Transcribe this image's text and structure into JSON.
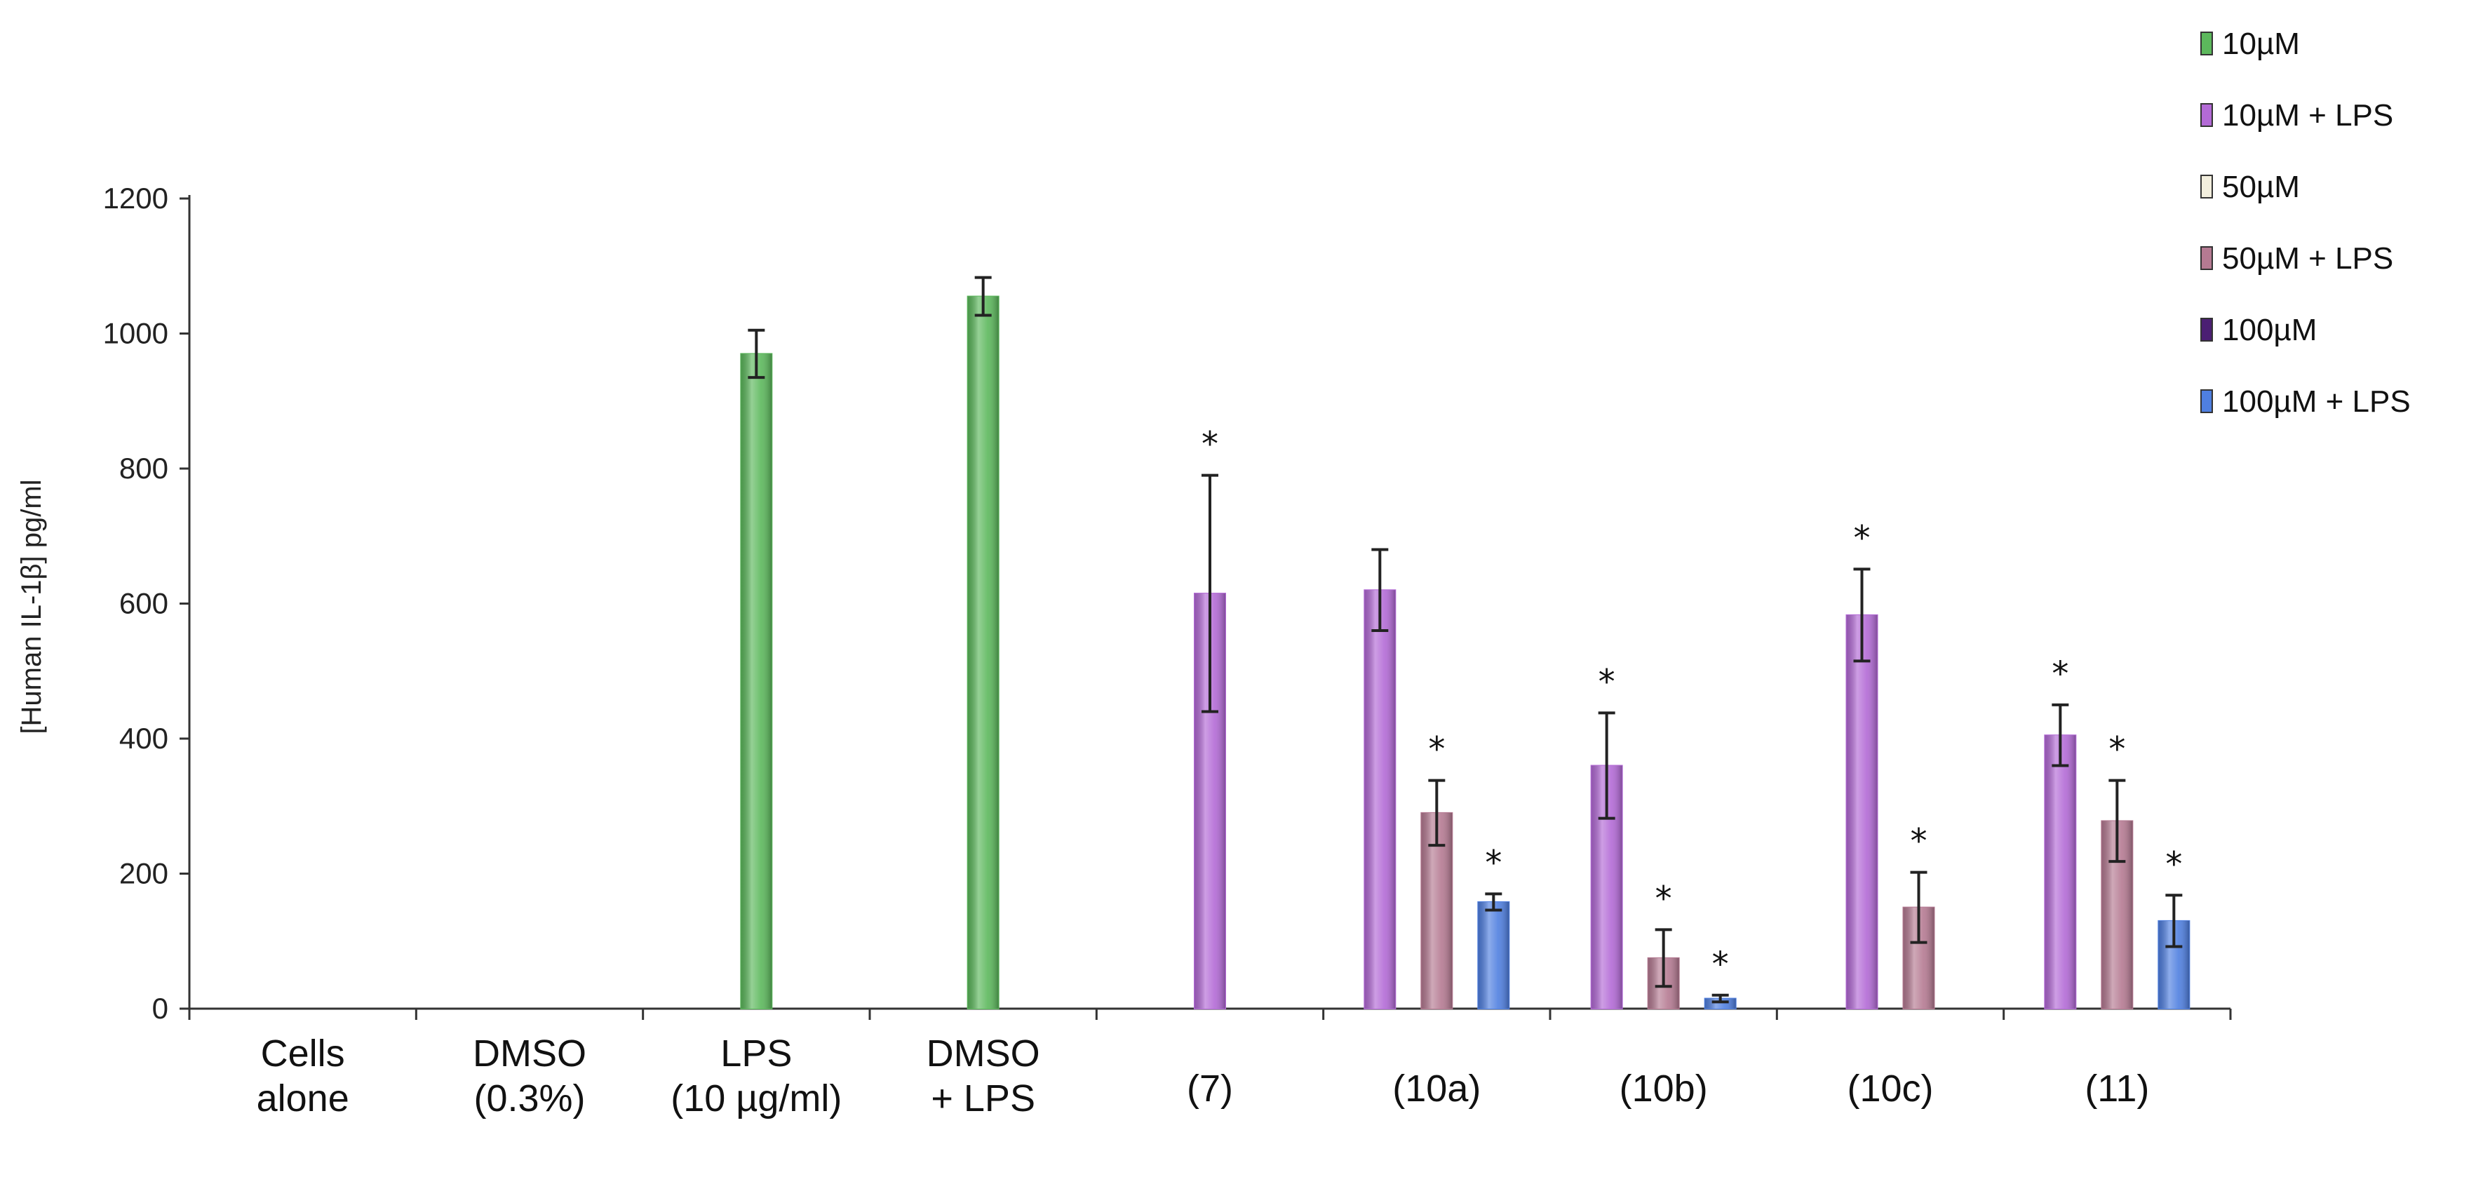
{
  "chart_data": {
    "type": "bar",
    "title": "",
    "xlabel": "",
    "ylabel": "[Human IL-1β] pg/ml",
    "ylim": [
      0,
      1200
    ],
    "yticks": [
      0,
      200,
      400,
      600,
      800,
      1000,
      1200
    ],
    "ytick_labels": [
      "0",
      "200",
      "400",
      "600",
      "800",
      "1000",
      "1200"
    ],
    "categories": [
      {
        "lines": [
          "Cells",
          "alone"
        ]
      },
      {
        "lines": [
          "DMSO",
          "(0.3%)"
        ]
      },
      {
        "lines": [
          "LPS",
          "(10 µg/ml)"
        ]
      },
      {
        "lines": [
          "DMSO",
          "+ LPS"
        ]
      },
      {
        "lines": [
          "(7)"
        ]
      },
      {
        "lines": [
          "(10a)"
        ]
      },
      {
        "lines": [
          "(10b)"
        ]
      },
      {
        "lines": [
          "(10c)"
        ]
      },
      {
        "lines": [
          "(11)"
        ]
      }
    ],
    "series": [
      {
        "name": "10µM",
        "color": "#5cb85c"
      },
      {
        "name": "10µM + LPS",
        "color": "#b36ad6"
      },
      {
        "name": "50µM",
        "color": "#f2eedd"
      },
      {
        "name": "50µM + LPS",
        "color": "#b57a92"
      },
      {
        "name": "100µM",
        "color": "#4b1f73"
      },
      {
        "name": "100µM + LPS",
        "color": "#4f7fe0"
      }
    ],
    "bars": [
      {
        "category": 2,
        "series": 0,
        "value": 970,
        "error": 35,
        "star": false
      },
      {
        "category": 3,
        "series": 0,
        "value": 1055,
        "error": 28,
        "star": false
      },
      {
        "category": 4,
        "series": 1,
        "value": 615,
        "error": 175,
        "star": true
      },
      {
        "category": 5,
        "series": 1,
        "value": 620,
        "error": 60,
        "star": false
      },
      {
        "category": 5,
        "series": 3,
        "value": 290,
        "error": 48,
        "star": true
      },
      {
        "category": 5,
        "series": 5,
        "value": 158,
        "error": 12,
        "star": true
      },
      {
        "category": 6,
        "series": 1,
        "value": 360,
        "error": 78,
        "star": true
      },
      {
        "category": 6,
        "series": 3,
        "value": 75,
        "error": 42,
        "star": true
      },
      {
        "category": 6,
        "series": 5,
        "value": 15,
        "error": 5,
        "star": true
      },
      {
        "category": 7,
        "series": 1,
        "value": 583,
        "error": 68,
        "star": true
      },
      {
        "category": 7,
        "series": 3,
        "value": 150,
        "error": 52,
        "star": true
      },
      {
        "category": 8,
        "series": 1,
        "value": 405,
        "error": 45,
        "star": true
      },
      {
        "category": 8,
        "series": 3,
        "value": 278,
        "error": 60,
        "star": true
      },
      {
        "category": 8,
        "series": 5,
        "value": 130,
        "error": 38,
        "star": true
      }
    ],
    "significance_marker": "*",
    "legend_position": "top-right"
  }
}
